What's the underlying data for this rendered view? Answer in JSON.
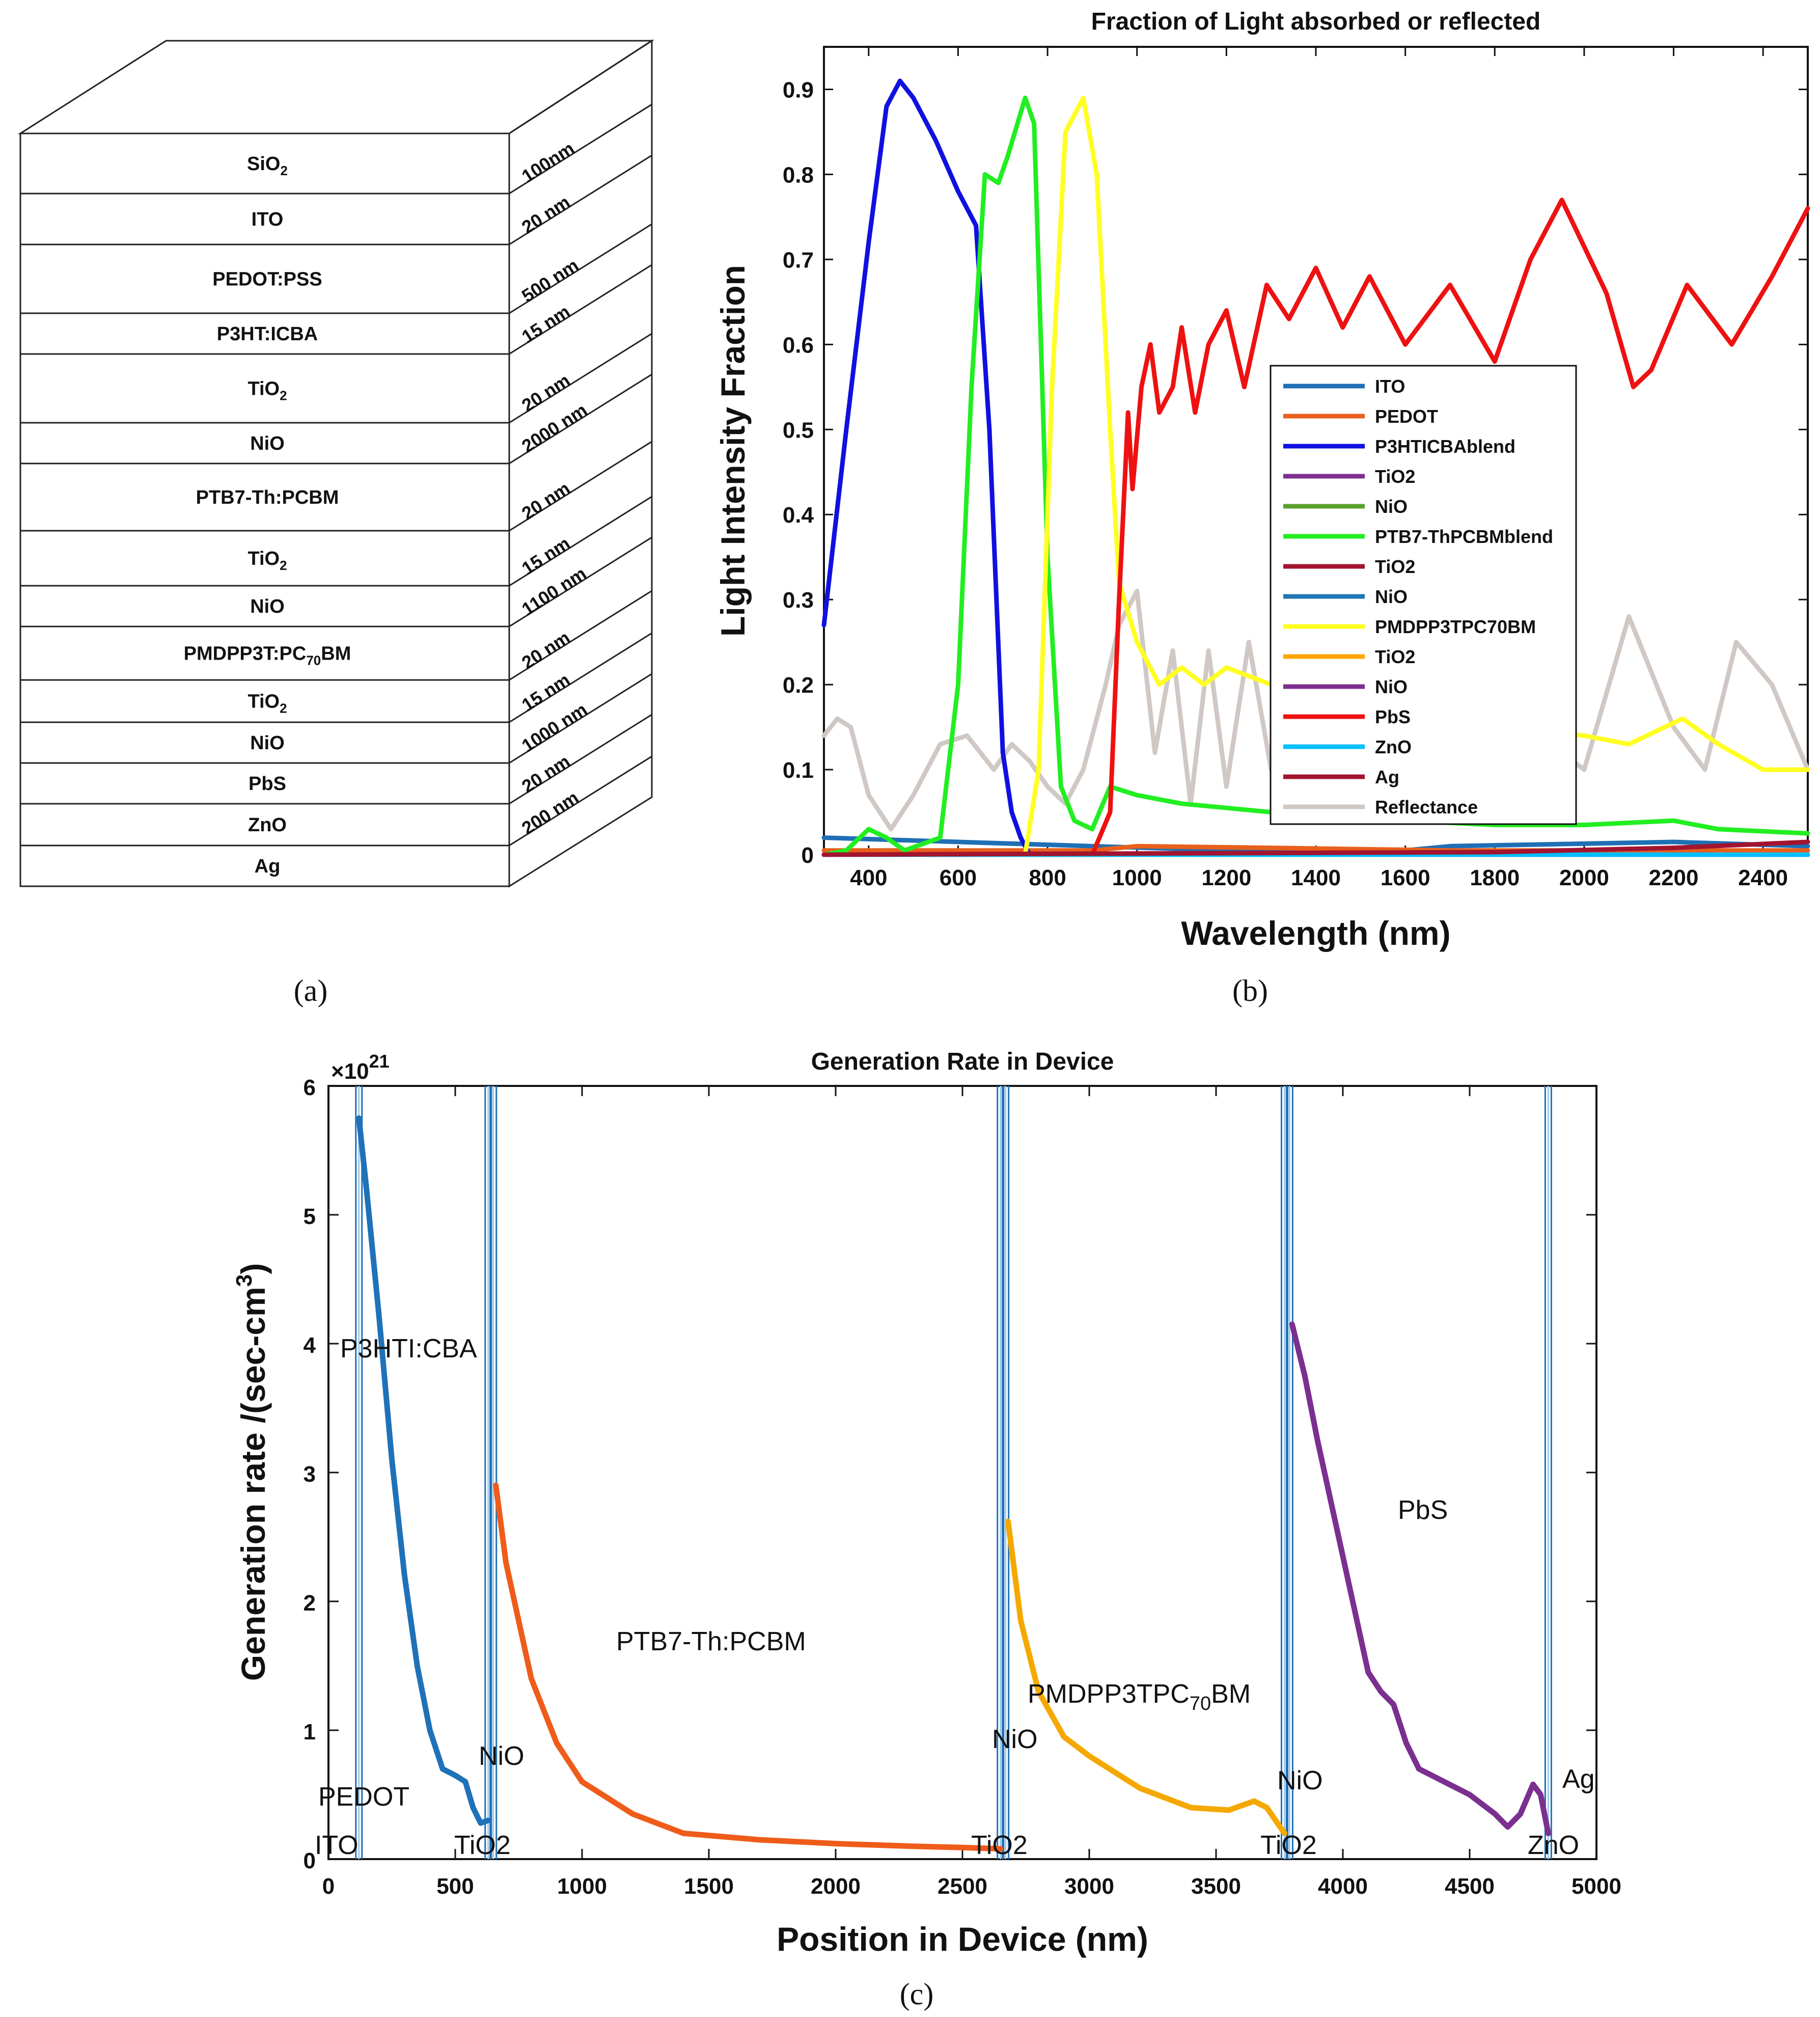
{
  "figure": {
    "panel_a_label": "(a)",
    "panel_b_label": "(b)",
    "panel_c_label": "(c)"
  },
  "stack": {
    "layers": [
      {
        "name": "SiO",
        "sub": "2"
      },
      {
        "name": "ITO",
        "sub": ""
      },
      {
        "name": "PEDOT:PSS",
        "sub": ""
      },
      {
        "name": "P3HT:ICBA",
        "sub": ""
      },
      {
        "name": "TiO",
        "sub": "2"
      },
      {
        "name": "NiO",
        "sub": ""
      },
      {
        "name": "PTB7-Th:PCBM",
        "sub": ""
      },
      {
        "name": "TiO",
        "sub": "2"
      },
      {
        "name": "NiO",
        "sub": ""
      },
      {
        "name": "PMDPP3T:PC",
        "sub": "70",
        "suffix": "BM"
      },
      {
        "name": "TiO",
        "sub": "2"
      },
      {
        "name": "NiO",
        "sub": ""
      },
      {
        "name": "PbS",
        "sub": ""
      },
      {
        "name": "ZnO",
        "sub": ""
      },
      {
        "name": "Ag",
        "sub": ""
      }
    ],
    "thicknesses": [
      "100nm",
      "20 nm",
      "500 nm",
      "15 nm",
      "20 nm",
      "2000 nm",
      "20 nm",
      "15  nm",
      "1100 nm",
      "20 nm",
      "15 nm",
      "1000 nm",
      "20 nm",
      "200 nm"
    ]
  },
  "chart_data": [
    {
      "type": "line",
      "title": "Fraction of Light absorbed or reflected",
      "xlabel": "Wavelength (nm)",
      "ylabel": "Light Intensity Fraction",
      "xlim": [
        300,
        2500
      ],
      "ylim": [
        0,
        0.95
      ],
      "xticks": [
        400,
        600,
        800,
        1000,
        1200,
        1400,
        1600,
        1800,
        2000,
        2200,
        2400
      ],
      "yticks": [
        0,
        0.1,
        0.2,
        0.3,
        0.4,
        0.5,
        0.6,
        0.7,
        0.8,
        0.9
      ],
      "legend_position": "center-right",
      "series": [
        {
          "name": "ITO",
          "color": "#1f6fb5",
          "points": [
            [
              300,
              0.02
            ],
            [
              1500,
              0.0
            ],
            [
              1700,
              0.01
            ],
            [
              2200,
              0.015
            ],
            [
              2500,
              0.01
            ]
          ]
        },
        {
          "name": "PEDOT",
          "color": "#e8601c",
          "points": [
            [
              300,
              0.005
            ],
            [
              900,
              0.005
            ],
            [
              1000,
              0.01
            ],
            [
              1300,
              0.008
            ],
            [
              1700,
              0.005
            ],
            [
              2500,
              0.005
            ]
          ]
        },
        {
          "name": "P3HTICBAblend",
          "color": "#1010e0",
          "points": [
            [
              300,
              0.27
            ],
            [
              350,
              0.5
            ],
            [
              400,
              0.72
            ],
            [
              440,
              0.88
            ],
            [
              470,
              0.91
            ],
            [
              500,
              0.89
            ],
            [
              550,
              0.84
            ],
            [
              600,
              0.78
            ],
            [
              640,
              0.74
            ],
            [
              670,
              0.5
            ],
            [
              700,
              0.12
            ],
            [
              720,
              0.05
            ],
            [
              740,
              0.02
            ],
            [
              760,
              0.0
            ],
            [
              2500,
              0.0
            ]
          ]
        },
        {
          "name": "TiO2",
          "color": "#7e2f8e",
          "points": [
            [
              300,
              0.0
            ],
            [
              2500,
              0.0
            ]
          ]
        },
        {
          "name": "NiO",
          "color": "#5aa02c",
          "points": [
            [
              300,
              0.0
            ],
            [
              2500,
              0.0
            ]
          ]
        },
        {
          "name": "PTB7-ThPCBMblend",
          "color": "#22ee22",
          "points": [
            [
              300,
              0.0
            ],
            [
              350,
              0.005
            ],
            [
              400,
              0.03
            ],
            [
              440,
              0.02
            ],
            [
              480,
              0.005
            ],
            [
              560,
              0.02
            ],
            [
              600,
              0.2
            ],
            [
              630,
              0.55
            ],
            [
              660,
              0.8
            ],
            [
              690,
              0.79
            ],
            [
              710,
              0.82
            ],
            [
              750,
              0.89
            ],
            [
              770,
              0.86
            ],
            [
              800,
              0.35
            ],
            [
              830,
              0.08
            ],
            [
              860,
              0.04
            ],
            [
              900,
              0.03
            ],
            [
              940,
              0.08
            ],
            [
              1000,
              0.07
            ],
            [
              1100,
              0.06
            ],
            [
              1200,
              0.055
            ],
            [
              1400,
              0.045
            ],
            [
              1600,
              0.04
            ],
            [
              1800,
              0.035
            ],
            [
              2000,
              0.035
            ],
            [
              2200,
              0.04
            ],
            [
              2300,
              0.03
            ],
            [
              2500,
              0.025
            ]
          ]
        },
        {
          "name": "TiO2",
          "color": "#a2142f",
          "points": [
            [
              300,
              0.0
            ],
            [
              2500,
              0.0
            ]
          ]
        },
        {
          "name": "NiO",
          "color": "#1f77b4",
          "points": [
            [
              300,
              0.0
            ],
            [
              2500,
              0.0
            ]
          ]
        },
        {
          "name": "PMDPP3TPC70BM",
          "color": "#ffff22",
          "points": [
            [
              300,
              0.0
            ],
            [
              750,
              0.0
            ],
            [
              780,
              0.1
            ],
            [
              810,
              0.55
            ],
            [
              840,
              0.85
            ],
            [
              880,
              0.89
            ],
            [
              910,
              0.8
            ],
            [
              940,
              0.5
            ],
            [
              960,
              0.32
            ],
            [
              1000,
              0.25
            ],
            [
              1050,
              0.2
            ],
            [
              1100,
              0.22
            ],
            [
              1150,
              0.2
            ],
            [
              1200,
              0.22
            ],
            [
              1300,
              0.2
            ],
            [
              1400,
              0.18
            ],
            [
              1600,
              0.17
            ],
            [
              1800,
              0.15
            ],
            [
              2000,
              0.14
            ],
            [
              2100,
              0.13
            ],
            [
              2220,
              0.16
            ],
            [
              2300,
              0.13
            ],
            [
              2400,
              0.1
            ],
            [
              2500,
              0.1
            ]
          ]
        },
        {
          "name": "TiO2",
          "color": "#ffa500",
          "points": [
            [
              300,
              0.0
            ],
            [
              2500,
              0.0
            ]
          ]
        },
        {
          "name": "NiO",
          "color": "#7e2f8e",
          "points": [
            [
              300,
              0.0
            ],
            [
              2500,
              0.0
            ]
          ]
        },
        {
          "name": "PbS",
          "color": "#ee1111",
          "points": [
            [
              300,
              0.0
            ],
            [
              900,
              0.0
            ],
            [
              940,
              0.05
            ],
            [
              960,
              0.3
            ],
            [
              980,
              0.52
            ],
            [
              990,
              0.43
            ],
            [
              1010,
              0.55
            ],
            [
              1030,
              0.6
            ],
            [
              1050,
              0.52
            ],
            [
              1080,
              0.55
            ],
            [
              1100,
              0.62
            ],
            [
              1130,
              0.52
            ],
            [
              1160,
              0.6
            ],
            [
              1200,
              0.64
            ],
            [
              1240,
              0.55
            ],
            [
              1290,
              0.67
            ],
            [
              1340,
              0.63
            ],
            [
              1400,
              0.69
            ],
            [
              1460,
              0.62
            ],
            [
              1520,
              0.68
            ],
            [
              1600,
              0.6
            ],
            [
              1700,
              0.67
            ],
            [
              1800,
              0.58
            ],
            [
              1880,
              0.7
            ],
            [
              1950,
              0.77
            ],
            [
              2050,
              0.66
            ],
            [
              2110,
              0.55
            ],
            [
              2150,
              0.57
            ],
            [
              2230,
              0.67
            ],
            [
              2330,
              0.6
            ],
            [
              2420,
              0.68
            ],
            [
              2500,
              0.76
            ]
          ]
        },
        {
          "name": "ZnO",
          "color": "#00bfff",
          "points": [
            [
              300,
              0.0
            ],
            [
              2500,
              0.0
            ]
          ]
        },
        {
          "name": "Ag",
          "color": "#a2142f",
          "points": [
            [
              300,
              0.0
            ],
            [
              1800,
              0.003
            ],
            [
              2200,
              0.008
            ],
            [
              2500,
              0.015
            ]
          ]
        },
        {
          "name": "Reflectance",
          "color": "#cfc8c4",
          "points": [
            [
              300,
              0.14
            ],
            [
              330,
              0.16
            ],
            [
              360,
              0.15
            ],
            [
              400,
              0.07
            ],
            [
              450,
              0.03
            ],
            [
              500,
              0.07
            ],
            [
              560,
              0.13
            ],
            [
              620,
              0.14
            ],
            [
              680,
              0.1
            ],
            [
              720,
              0.13
            ],
            [
              760,
              0.11
            ],
            [
              800,
              0.08
            ],
            [
              840,
              0.06
            ],
            [
              880,
              0.1
            ],
            [
              930,
              0.2
            ],
            [
              960,
              0.27
            ],
            [
              1000,
              0.31
            ],
            [
              1040,
              0.12
            ],
            [
              1080,
              0.24
            ],
            [
              1120,
              0.06
            ],
            [
              1160,
              0.24
            ],
            [
              1200,
              0.08
            ],
            [
              1250,
              0.25
            ],
            [
              1300,
              0.1
            ],
            [
              1400,
              0.2
            ],
            [
              1500,
              0.1
            ],
            [
              1600,
              0.22
            ],
            [
              1700,
              0.08
            ],
            [
              1800,
              0.2
            ],
            [
              1900,
              0.14
            ],
            [
              2000,
              0.1
            ],
            [
              2100,
              0.28
            ],
            [
              2200,
              0.15
            ],
            [
              2270,
              0.1
            ],
            [
              2340,
              0.25
            ],
            [
              2420,
              0.2
            ],
            [
              2500,
              0.1
            ]
          ]
        }
      ]
    },
    {
      "type": "line",
      "title": "Generation Rate in Device",
      "xlabel": "Position in Device (nm)",
      "ylabel": "Generation rate /(sec-cm",
      "ylabel_sup": "3",
      "ylabel_end": ")",
      "multiplier_base": "×10",
      "multiplier_exp": "21",
      "xlim": [
        0,
        5000
      ],
      "ylim": [
        0,
        6
      ],
      "xticks": [
        0,
        500,
        1000,
        1500,
        2000,
        2500,
        3000,
        3500,
        4000,
        4500,
        5000
      ],
      "yticks": [
        0,
        1,
        2,
        3,
        4,
        5,
        6
      ],
      "boundaries": [
        120,
        630,
        650,
        2650,
        2670,
        3770,
        3790,
        4810
      ],
      "series": [
        {
          "name": "P3HT:ICBA",
          "color": "#1f72b8",
          "points": [
            [
              120,
              5.75
            ],
            [
              150,
              5.2
            ],
            [
              200,
              4.2
            ],
            [
              250,
              3.1
            ],
            [
              300,
              2.2
            ],
            [
              350,
              1.5
            ],
            [
              400,
              1.0
            ],
            [
              450,
              0.7
            ],
            [
              500,
              0.65
            ],
            [
              540,
              0.6
            ],
            [
              570,
              0.4
            ],
            [
              600,
              0.28
            ],
            [
              630,
              0.3
            ]
          ]
        },
        {
          "name": "PTB7-Th:PCBM",
          "color": "#ef5c1a",
          "points": [
            [
              660,
              2.9
            ],
            [
              700,
              2.3
            ],
            [
              800,
              1.4
            ],
            [
              900,
              0.9
            ],
            [
              1000,
              0.6
            ],
            [
              1200,
              0.35
            ],
            [
              1400,
              0.2
            ],
            [
              1700,
              0.15
            ],
            [
              2000,
              0.12
            ],
            [
              2300,
              0.1
            ],
            [
              2500,
              0.09
            ],
            [
              2650,
              0.08
            ]
          ]
        },
        {
          "name": "PMDPP3TPC70BM",
          "color": "#f5a800",
          "points": [
            [
              2680,
              2.62
            ],
            [
              2730,
              1.85
            ],
            [
              2800,
              1.3
            ],
            [
              2900,
              0.95
            ],
            [
              3000,
              0.8
            ],
            [
              3200,
              0.55
            ],
            [
              3400,
              0.4
            ],
            [
              3550,
              0.38
            ],
            [
              3650,
              0.45
            ],
            [
              3700,
              0.4
            ],
            [
              3770,
              0.2
            ]
          ]
        },
        {
          "name": "PbS",
          "color": "#7b2f8f",
          "points": [
            [
              3800,
              4.15
            ],
            [
              3850,
              3.75
            ],
            [
              3900,
              3.25
            ],
            [
              4000,
              2.35
            ],
            [
              4100,
              1.45
            ],
            [
              4150,
              1.3
            ],
            [
              4200,
              1.2
            ],
            [
              4250,
              0.9
            ],
            [
              4300,
              0.7
            ],
            [
              4400,
              0.6
            ],
            [
              4500,
              0.5
            ],
            [
              4600,
              0.35
            ],
            [
              4650,
              0.25
            ],
            [
              4700,
              0.35
            ],
            [
              4750,
              0.58
            ],
            [
              4780,
              0.5
            ],
            [
              4800,
              0.3
            ],
            [
              4810,
              0.2
            ]
          ]
        }
      ],
      "annotations": [
        "P3HTI:CBA",
        "PEDOT",
        "ITO",
        "NiO",
        "TiO2",
        "PTB7-Th:PCBM",
        "NiO",
        "TiO2",
        "PMDPP3TPC",
        "70",
        "BM",
        "NiO",
        "TiO2",
        "PbS",
        "Ag",
        "ZnO"
      ]
    }
  ]
}
